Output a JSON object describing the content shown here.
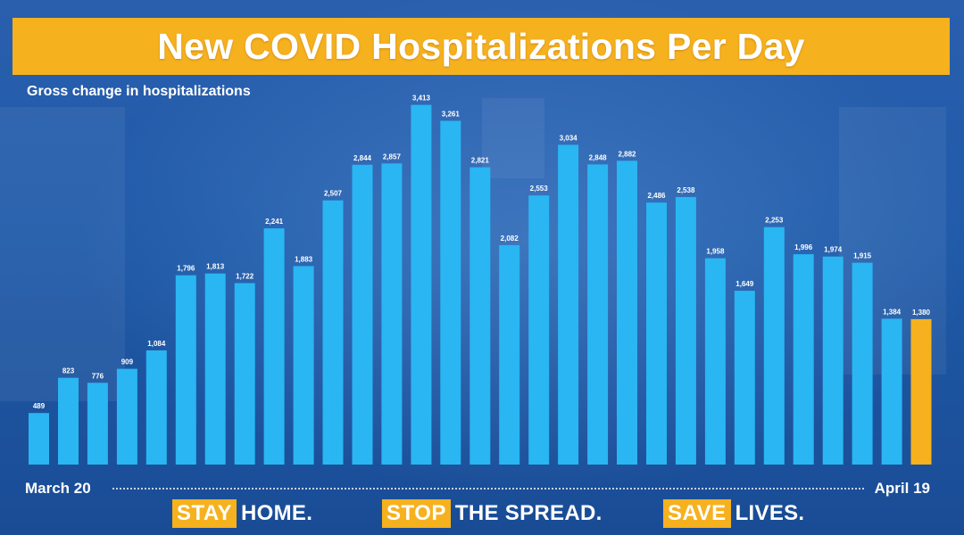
{
  "colors": {
    "bar": "#29b6f2",
    "highlight": "#f6b11e",
    "banner": "#f6b11e",
    "text": "#ffffff"
  },
  "chart_data": {
    "type": "bar",
    "title": "New COVID Hospitalizations Per Day",
    "subtitle": "Gross change in hospitalizations",
    "xlabel": "",
    "ylabel": "",
    "x_start_label": "March 20",
    "x_end_label": "April 19",
    "ylim": [
      0,
      3600
    ],
    "grid": false,
    "legend": "none",
    "highlight_index": 30,
    "values": [
      489,
      823,
      776,
      909,
      1084,
      1796,
      1813,
      1722,
      2241,
      1883,
      2507,
      2844,
      2857,
      3413,
      3261,
      2821,
      2082,
      2553,
      3034,
      2848,
      2882,
      2486,
      2538,
      1958,
      1649,
      2253,
      1996,
      1974,
      1915,
      1384,
      1380
    ],
    "value_labels": [
      "489",
      "823",
      "776",
      "909",
      "1,084",
      "1,796",
      "1,813",
      "1,722",
      "2,241",
      "1,883",
      "2,507",
      "2,844",
      "2,857",
      "3,413",
      "3,261",
      "2,821",
      "2,082",
      "2,553",
      "3,034",
      "2,848",
      "2,882",
      "2,486",
      "2,538",
      "1,958",
      "1,649",
      "2,253",
      "1,996",
      "1,974",
      "1,915",
      "1,384",
      "1,380"
    ]
  },
  "footer": {
    "slogan1_tag": "STAY",
    "slogan1_rest": "HOME.",
    "slogan2_tag": "STOP",
    "slogan2_rest": "THE SPREAD.",
    "slogan3_tag": "SAVE",
    "slogan3_rest": "LIVES."
  }
}
